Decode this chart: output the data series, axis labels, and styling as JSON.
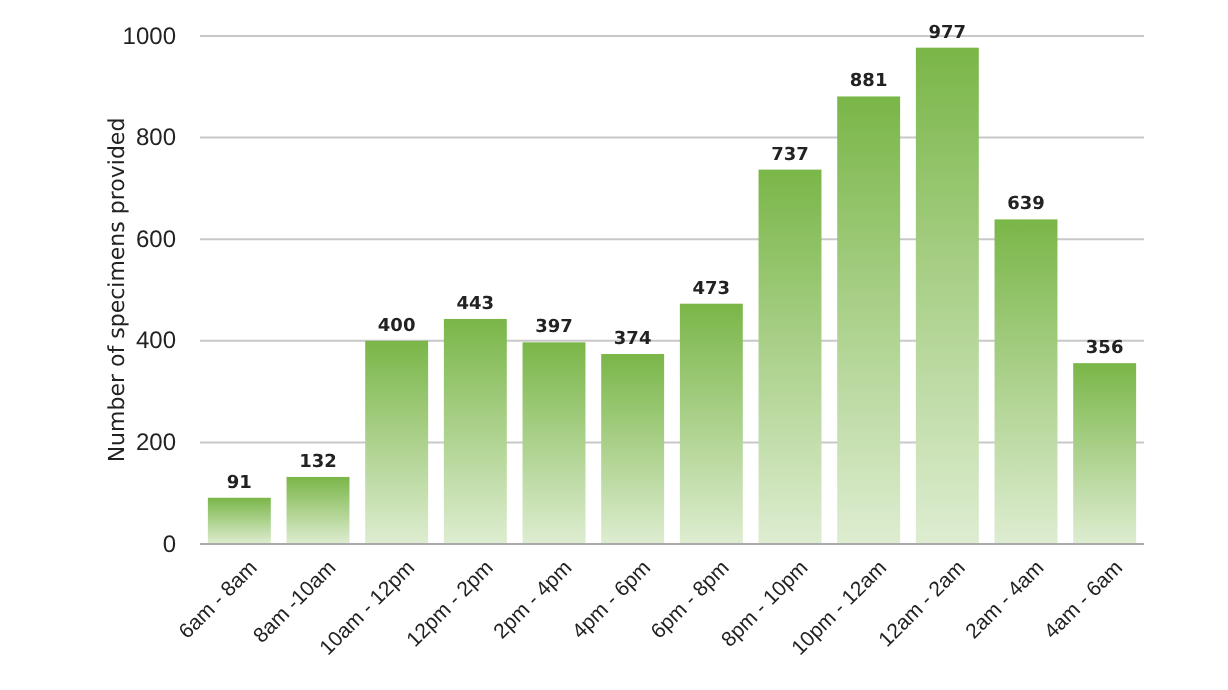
{
  "chart_data": {
    "type": "bar",
    "ylabel": "Number of specimens provided",
    "categories": [
      "6am - 8am",
      "8am -10am",
      "10am - 12pm",
      "12pm - 2pm",
      "2pm - 4pm",
      "4pm - 6pm",
      "6pm - 8pm",
      "8pm - 10pm",
      "10pm - 12am",
      "12am - 2am",
      "2am - 4am",
      "4am - 6am"
    ],
    "values": [
      91,
      132,
      400,
      443,
      397,
      374,
      473,
      737,
      881,
      977,
      639,
      356
    ],
    "color": "#7ab648",
    "ylim": [
      0,
      1000
    ],
    "yticks": [
      0,
      200,
      400,
      600,
      800,
      1000
    ],
    "grid": "y",
    "data_labels": true
  }
}
